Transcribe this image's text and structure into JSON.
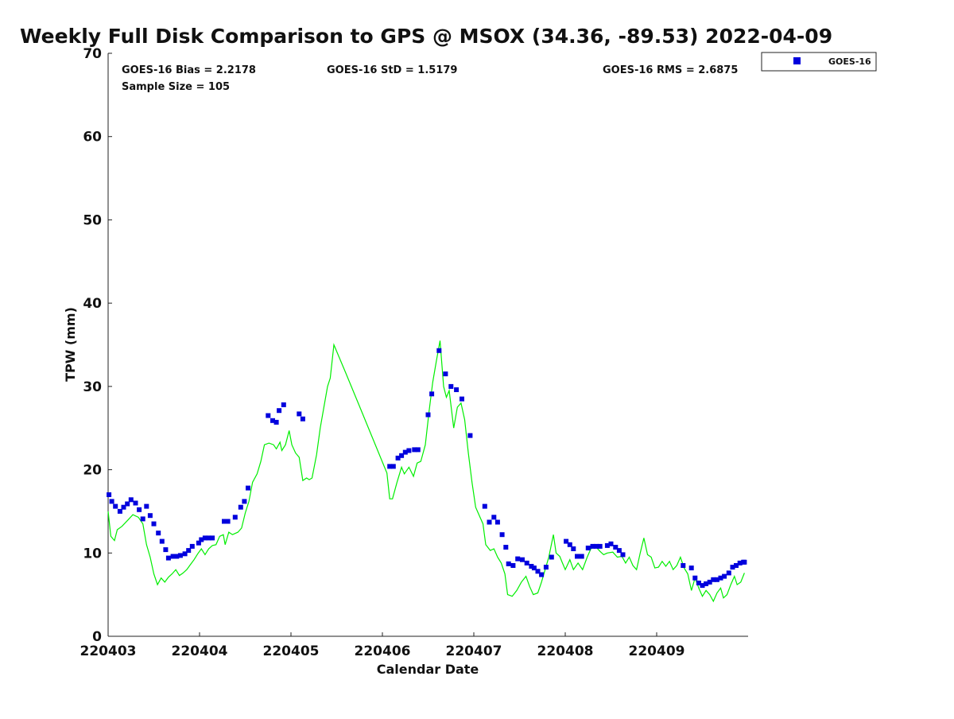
{
  "chart_data": {
    "type": "scatter",
    "title": "Weekly Full Disk Comparison to GPS @ MSOX (34.36, -89.53) 2022-04-09",
    "xlabel": "Calendar Date",
    "ylabel": "TPW (mm)",
    "xlim": [
      3.0,
      10.0
    ],
    "ylim": [
      0,
      70
    ],
    "x_ticks": [
      {
        "value": 3,
        "label": "220403"
      },
      {
        "value": 4,
        "label": "220404"
      },
      {
        "value": 5,
        "label": "220405"
      },
      {
        "value": 6,
        "label": "220406"
      },
      {
        "value": 7,
        "label": "220407"
      },
      {
        "value": 8,
        "label": "220408"
      },
      {
        "value": 9,
        "label": "220409"
      }
    ],
    "y_ticks": [
      {
        "value": 0,
        "label": "0"
      },
      {
        "value": 10,
        "label": "10"
      },
      {
        "value": 20,
        "label": "20"
      },
      {
        "value": 30,
        "label": "30"
      },
      {
        "value": 40,
        "label": "40"
      },
      {
        "value": 50,
        "label": "50"
      },
      {
        "value": 60,
        "label": "60"
      },
      {
        "value": 70,
        "label": "70"
      }
    ],
    "stats": {
      "bias": "GOES-16 Bias = 2.2178",
      "std": "GOES-16 StD = 1.5179",
      "rms": "GOES-16 RMS = 2.6875",
      "sample": "Sample Size = 105"
    },
    "legend": {
      "position": "top-right-outside",
      "entries": [
        "GOES-16"
      ]
    },
    "grid": false,
    "series": [
      {
        "name": "GOES-16",
        "type": "scatter",
        "marker": "square",
        "color": "#0000dd",
        "points": [
          [
            3.01,
            17.0
          ],
          [
            3.04,
            16.2
          ],
          [
            3.08,
            15.6
          ],
          [
            3.13,
            15.0
          ],
          [
            3.17,
            15.5
          ],
          [
            3.21,
            15.9
          ],
          [
            3.25,
            16.4
          ],
          [
            3.3,
            16.0
          ],
          [
            3.34,
            15.2
          ],
          [
            3.38,
            14.1
          ],
          [
            3.42,
            15.6
          ],
          [
            3.46,
            14.5
          ],
          [
            3.5,
            13.5
          ],
          [
            3.55,
            12.4
          ],
          [
            3.59,
            11.4
          ],
          [
            3.63,
            10.4
          ],
          [
            3.66,
            9.4
          ],
          [
            3.71,
            9.6
          ],
          [
            3.75,
            9.6
          ],
          [
            3.79,
            9.7
          ],
          [
            3.84,
            9.9
          ],
          [
            3.88,
            10.3
          ],
          [
            3.92,
            10.8
          ],
          [
            3.99,
            11.2
          ],
          [
            4.02,
            11.6
          ],
          [
            4.06,
            11.8
          ],
          [
            4.1,
            11.8
          ],
          [
            4.14,
            11.8
          ],
          [
            4.27,
            13.8
          ],
          [
            4.31,
            13.8
          ],
          [
            4.39,
            14.3
          ],
          [
            4.45,
            15.5
          ],
          [
            4.49,
            16.2
          ],
          [
            4.53,
            17.8
          ],
          [
            4.75,
            26.5
          ],
          [
            4.8,
            25.9
          ],
          [
            4.84,
            25.7
          ],
          [
            4.87,
            27.1
          ],
          [
            4.92,
            27.8
          ],
          [
            5.09,
            26.7
          ],
          [
            5.13,
            26.1
          ],
          [
            6.08,
            20.4
          ],
          [
            6.12,
            20.4
          ],
          [
            6.17,
            21.4
          ],
          [
            6.21,
            21.7
          ],
          [
            6.25,
            22.1
          ],
          [
            6.29,
            22.3
          ],
          [
            6.35,
            22.4
          ],
          [
            6.39,
            22.4
          ],
          [
            6.5,
            26.6
          ],
          [
            6.54,
            29.1
          ],
          [
            6.62,
            34.3
          ],
          [
            6.69,
            31.5
          ],
          [
            6.75,
            30.0
          ],
          [
            6.81,
            29.6
          ],
          [
            6.87,
            28.5
          ],
          [
            6.96,
            24.1
          ],
          [
            7.12,
            15.6
          ],
          [
            7.17,
            13.7
          ],
          [
            7.22,
            14.3
          ],
          [
            7.26,
            13.7
          ],
          [
            7.31,
            12.2
          ],
          [
            7.35,
            10.7
          ],
          [
            7.38,
            8.7
          ],
          [
            7.43,
            8.5
          ],
          [
            7.48,
            9.3
          ],
          [
            7.53,
            9.2
          ],
          [
            7.58,
            8.8
          ],
          [
            7.63,
            8.4
          ],
          [
            7.66,
            8.2
          ],
          [
            7.7,
            7.8
          ],
          [
            7.74,
            7.4
          ],
          [
            7.79,
            8.3
          ],
          [
            7.85,
            9.5
          ],
          [
            8.01,
            11.4
          ],
          [
            8.05,
            11.0
          ],
          [
            8.09,
            10.5
          ],
          [
            8.13,
            9.6
          ],
          [
            8.18,
            9.6
          ],
          [
            8.25,
            10.6
          ],
          [
            8.3,
            10.8
          ],
          [
            8.34,
            10.8
          ],
          [
            8.38,
            10.8
          ],
          [
            8.46,
            10.9
          ],
          [
            8.5,
            11.1
          ],
          [
            8.55,
            10.7
          ],
          [
            8.59,
            10.3
          ],
          [
            8.63,
            9.8
          ],
          [
            9.29,
            8.5
          ],
          [
            9.38,
            8.2
          ],
          [
            9.42,
            7.0
          ],
          [
            9.46,
            6.4
          ],
          [
            9.5,
            6.1
          ],
          [
            9.54,
            6.3
          ],
          [
            9.58,
            6.5
          ],
          [
            9.62,
            6.8
          ],
          [
            9.66,
            6.8
          ],
          [
            9.7,
            7.0
          ],
          [
            9.74,
            7.2
          ],
          [
            9.79,
            7.6
          ],
          [
            9.83,
            8.3
          ],
          [
            9.87,
            8.5
          ],
          [
            9.91,
            8.8
          ],
          [
            9.95,
            8.9
          ],
          [
            9.96,
            8.9
          ]
        ]
      },
      {
        "name": "",
        "type": "line",
        "color": "#00ee00",
        "points": [
          [
            3.0,
            15.0
          ],
          [
            3.03,
            12.0
          ],
          [
            3.07,
            11.5
          ],
          [
            3.1,
            12.8
          ],
          [
            3.15,
            13.2
          ],
          [
            3.22,
            14.0
          ],
          [
            3.27,
            14.6
          ],
          [
            3.33,
            14.3
          ],
          [
            3.38,
            13.5
          ],
          [
            3.42,
            11.0
          ],
          [
            3.46,
            9.5
          ],
          [
            3.5,
            7.5
          ],
          [
            3.54,
            6.2
          ],
          [
            3.58,
            7.0
          ],
          [
            3.62,
            6.5
          ],
          [
            3.66,
            7.1
          ],
          [
            3.7,
            7.5
          ],
          [
            3.74,
            8.0
          ],
          [
            3.78,
            7.3
          ],
          [
            3.82,
            7.6
          ],
          [
            3.86,
            8.0
          ],
          [
            3.9,
            8.6
          ],
          [
            3.94,
            9.2
          ],
          [
            3.98,
            9.9
          ],
          [
            4.02,
            10.5
          ],
          [
            4.06,
            9.8
          ],
          [
            4.1,
            10.5
          ],
          [
            4.14,
            10.9
          ],
          [
            4.18,
            11.0
          ],
          [
            4.22,
            12.0
          ],
          [
            4.26,
            12.2
          ],
          [
            4.28,
            11.0
          ],
          [
            4.32,
            12.5
          ],
          [
            4.36,
            12.2
          ],
          [
            4.42,
            12.5
          ],
          [
            4.46,
            13.0
          ],
          [
            4.5,
            14.8
          ],
          [
            4.54,
            16.2
          ],
          [
            4.58,
            18.5
          ],
          [
            4.63,
            19.5
          ],
          [
            4.67,
            21.0
          ],
          [
            4.71,
            23.0
          ],
          [
            4.76,
            23.2
          ],
          [
            4.81,
            23.0
          ],
          [
            4.84,
            22.5
          ],
          [
            4.88,
            23.3
          ],
          [
            4.9,
            22.3
          ],
          [
            4.94,
            23.0
          ],
          [
            4.98,
            24.7
          ],
          [
            5.01,
            23.0
          ],
          [
            5.05,
            22.0
          ],
          [
            5.09,
            21.5
          ],
          [
            5.13,
            18.7
          ],
          [
            5.17,
            19.0
          ],
          [
            5.2,
            18.8
          ],
          [
            5.23,
            19.0
          ],
          [
            5.28,
            21.8
          ],
          [
            5.32,
            25.0
          ],
          [
            5.36,
            27.5
          ],
          [
            5.4,
            30.0
          ],
          [
            5.43,
            31.0
          ],
          [
            5.47,
            35.0
          ],
          [
            5.6,
            31.6
          ],
          [
            5.75,
            27.6
          ],
          [
            5.9,
            23.6
          ],
          [
            6.05,
            19.6
          ],
          [
            6.08,
            16.5
          ],
          [
            6.11,
            16.5
          ],
          [
            6.16,
            18.5
          ],
          [
            6.21,
            20.3
          ],
          [
            6.24,
            19.5
          ],
          [
            6.29,
            20.3
          ],
          [
            6.34,
            19.2
          ],
          [
            6.38,
            20.8
          ],
          [
            6.42,
            21.0
          ],
          [
            6.47,
            23.0
          ],
          [
            6.51,
            27.0
          ],
          [
            6.55,
            30.5
          ],
          [
            6.59,
            33.0
          ],
          [
            6.63,
            35.5
          ],
          [
            6.67,
            30.0
          ],
          [
            6.7,
            28.7
          ],
          [
            6.73,
            29.5
          ],
          [
            6.78,
            25.0
          ],
          [
            6.82,
            27.5
          ],
          [
            6.86,
            28.0
          ],
          [
            6.9,
            26.0
          ],
          [
            6.94,
            22.0
          ],
          [
            6.98,
            18.5
          ],
          [
            7.02,
            15.5
          ],
          [
            7.06,
            14.5
          ],
          [
            7.1,
            13.5
          ],
          [
            7.13,
            11.0
          ],
          [
            7.18,
            10.3
          ],
          [
            7.22,
            10.5
          ],
          [
            7.26,
            9.5
          ],
          [
            7.3,
            8.8
          ],
          [
            7.34,
            7.5
          ],
          [
            7.37,
            5.0
          ],
          [
            7.42,
            4.8
          ],
          [
            7.47,
            5.5
          ],
          [
            7.52,
            6.5
          ],
          [
            7.57,
            7.2
          ],
          [
            7.61,
            6.0
          ],
          [
            7.65,
            5.0
          ],
          [
            7.7,
            5.2
          ],
          [
            7.74,
            6.5
          ],
          [
            7.78,
            8.0
          ],
          [
            7.82,
            9.5
          ],
          [
            7.87,
            12.2
          ],
          [
            7.9,
            10.0
          ],
          [
            7.94,
            9.6
          ],
          [
            7.97,
            8.8
          ],
          [
            8.0,
            8.0
          ],
          [
            8.05,
            9.2
          ],
          [
            8.09,
            8.0
          ],
          [
            8.14,
            8.8
          ],
          [
            8.19,
            8.0
          ],
          [
            8.24,
            9.5
          ],
          [
            8.28,
            10.5
          ],
          [
            8.33,
            10.8
          ],
          [
            8.38,
            10.2
          ],
          [
            8.42,
            9.8
          ],
          [
            8.46,
            10.0
          ],
          [
            8.52,
            10.1
          ],
          [
            8.57,
            9.5
          ],
          [
            8.62,
            9.6
          ],
          [
            8.66,
            8.8
          ],
          [
            8.7,
            9.5
          ],
          [
            8.74,
            8.5
          ],
          [
            8.78,
            8.0
          ],
          [
            8.82,
            10.0
          ],
          [
            8.86,
            11.8
          ],
          [
            8.9,
            9.8
          ],
          [
            8.94,
            9.5
          ],
          [
            8.98,
            8.2
          ],
          [
            9.02,
            8.3
          ],
          [
            9.06,
            9.0
          ],
          [
            9.1,
            8.4
          ],
          [
            9.14,
            9.0
          ],
          [
            9.18,
            8.0
          ],
          [
            9.22,
            8.5
          ],
          [
            9.26,
            9.5
          ],
          [
            9.3,
            8.2
          ],
          [
            9.34,
            7.5
          ],
          [
            9.38,
            5.5
          ],
          [
            9.42,
            7.0
          ],
          [
            9.46,
            5.8
          ],
          [
            9.5,
            4.8
          ],
          [
            9.54,
            5.5
          ],
          [
            9.58,
            5.0
          ],
          [
            9.62,
            4.2
          ],
          [
            9.66,
            5.2
          ],
          [
            9.7,
            5.8
          ],
          [
            9.73,
            4.6
          ],
          [
            9.77,
            5.0
          ],
          [
            9.81,
            6.2
          ],
          [
            9.85,
            7.2
          ],
          [
            9.88,
            6.2
          ],
          [
            9.92,
            6.5
          ],
          [
            9.96,
            7.6
          ]
        ]
      }
    ]
  }
}
